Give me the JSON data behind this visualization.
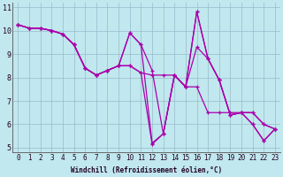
{
  "xlabel": "Windchill (Refroidissement éolien,°C)",
  "bg_color": "#c0e8ee",
  "line_color": "#aa00aa",
  "grid_color": "#99bbcc",
  "xlim": [
    -0.5,
    23.5
  ],
  "ylim": [
    4.8,
    11.2
  ],
  "xticks": [
    0,
    1,
    2,
    3,
    4,
    5,
    6,
    7,
    8,
    9,
    10,
    11,
    12,
    13,
    14,
    15,
    16,
    17,
    18,
    19,
    20,
    21,
    22,
    23
  ],
  "yticks": [
    5,
    6,
    7,
    8,
    9,
    10,
    11
  ],
  "series": [
    [
      10.25,
      10.1,
      10.1,
      10.0,
      9.85,
      9.4,
      8.4,
      8.1,
      8.3,
      8.5,
      9.9,
      9.4,
      8.3,
      5.6,
      8.1,
      7.6,
      9.3,
      8.8,
      7.9,
      6.4,
      6.5,
      6.5,
      6.0,
      5.8
    ],
    [
      10.25,
      10.1,
      10.1,
      10.0,
      9.85,
      9.4,
      8.4,
      8.1,
      8.3,
      8.5,
      9.9,
      9.4,
      5.2,
      5.6,
      8.1,
      7.6,
      10.8,
      8.8,
      7.9,
      6.4,
      6.5,
      6.0,
      5.3,
      5.8
    ],
    [
      10.25,
      10.1,
      10.1,
      10.0,
      9.85,
      9.4,
      8.4,
      8.1,
      8.3,
      8.5,
      8.5,
      8.2,
      5.15,
      5.6,
      8.1,
      7.6,
      10.8,
      8.8,
      7.9,
      6.4,
      6.5,
      6.0,
      5.3,
      5.8
    ],
    [
      10.25,
      10.1,
      10.1,
      10.0,
      9.85,
      9.4,
      8.4,
      8.1,
      8.3,
      8.5,
      8.5,
      8.2,
      8.1,
      8.1,
      8.1,
      7.6,
      7.6,
      6.5,
      6.5,
      6.5,
      6.5,
      6.5,
      6.0,
      5.8
    ]
  ],
  "marker": "+",
  "markersize": 3.5,
  "linewidth": 0.9,
  "tick_fontsize": 5.5,
  "xlabel_fontsize": 5.5
}
